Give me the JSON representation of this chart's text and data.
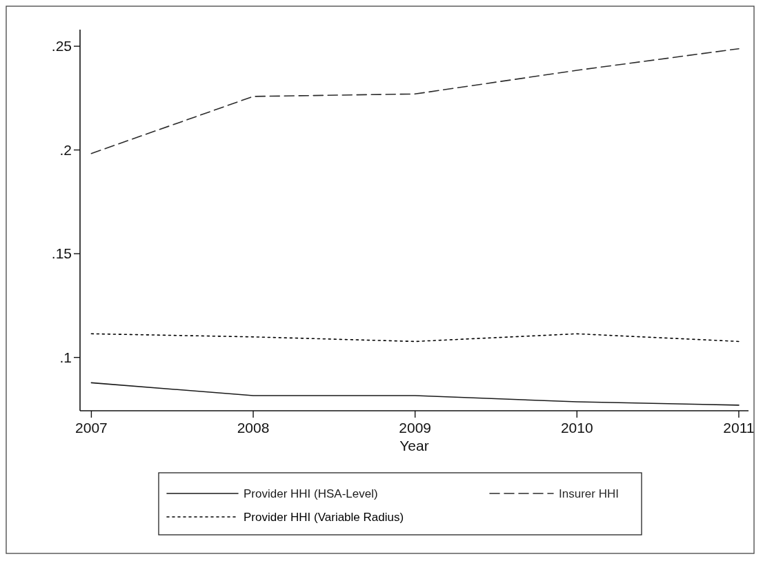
{
  "chart_data": {
    "type": "line",
    "xlabel": "Year",
    "x": [
      2007,
      2008,
      2009,
      2010,
      2011
    ],
    "xlim": [
      2006.93,
      2011.06
    ],
    "xticks": [
      2007,
      2008,
      2009,
      2010,
      2011
    ],
    "ylim": [
      0.0743,
      0.258
    ],
    "yticks": [
      {
        "value": 0.1,
        "label": ".1"
      },
      {
        "value": 0.15,
        "label": ".15"
      },
      {
        "value": 0.2,
        "label": ".2"
      },
      {
        "value": 0.25,
        "label": ".25"
      }
    ],
    "grid": false,
    "legend": "bottom",
    "marker": "none",
    "series": [
      {
        "name": "Provider HHI (HSA-Level)",
        "color": "#1a1a1a",
        "line_style": "solid",
        "values": [
          0.0878,
          0.0816,
          0.0816,
          0.0786,
          0.077
        ]
      },
      {
        "name": "Insurer HHI",
        "color": "#2b2b2b",
        "line_style": "dashed",
        "values": [
          0.1983,
          0.2258,
          0.227,
          0.2384,
          0.2488
        ]
      },
      {
        "name": "Provider HHI (Variable Radius)",
        "color": "#000000",
        "line_style": "dotted",
        "values": [
          0.1114,
          0.1099,
          0.1077,
          0.1114,
          0.1077
        ]
      }
    ]
  }
}
